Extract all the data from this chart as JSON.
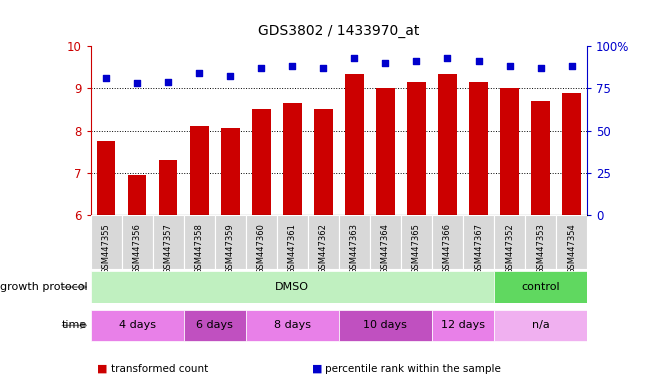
{
  "title": "GDS3802 / 1433970_at",
  "samples": [
    "GSM447355",
    "GSM447356",
    "GSM447357",
    "GSM447358",
    "GSM447359",
    "GSM447360",
    "GSM447361",
    "GSM447362",
    "GSM447363",
    "GSM447364",
    "GSM447365",
    "GSM447366",
    "GSM447367",
    "GSM447352",
    "GSM447353",
    "GSM447354"
  ],
  "transformed_count": [
    7.75,
    6.95,
    7.3,
    8.1,
    8.05,
    8.5,
    8.65,
    8.5,
    9.35,
    9.0,
    9.15,
    9.35,
    9.15,
    9.0,
    8.7,
    8.9
  ],
  "percentile_rank": [
    81,
    78,
    79,
    84,
    82,
    87,
    88,
    87,
    93,
    90,
    91,
    93,
    91,
    88,
    87,
    88
  ],
  "ylim_left": [
    6,
    10
  ],
  "ylim_right": [
    0,
    100
  ],
  "yticks_left": [
    6,
    7,
    8,
    9,
    10
  ],
  "yticks_right": [
    0,
    25,
    50,
    75,
    100
  ],
  "bar_color": "#cc0000",
  "dot_color": "#0000cc",
  "sample_bg": "#d8d8d8",
  "growth_protocol_groups": [
    {
      "label": "DMSO",
      "start": 0,
      "end": 13,
      "color": "#c0f0c0"
    },
    {
      "label": "control",
      "start": 13,
      "end": 16,
      "color": "#60d860"
    }
  ],
  "time_groups": [
    {
      "label": "4 days",
      "start": 0,
      "end": 3,
      "color": "#e880e8"
    },
    {
      "label": "6 days",
      "start": 3,
      "end": 5,
      "color": "#c050c0"
    },
    {
      "label": "8 days",
      "start": 5,
      "end": 8,
      "color": "#e880e8"
    },
    {
      "label": "10 days",
      "start": 8,
      "end": 11,
      "color": "#c050c0"
    },
    {
      "label": "12 days",
      "start": 11,
      "end": 13,
      "color": "#e880e8"
    },
    {
      "label": "n/a",
      "start": 13,
      "end": 16,
      "color": "#f0b0f0"
    }
  ],
  "legend_items": [
    {
      "label": "transformed count",
      "color": "#cc0000"
    },
    {
      "label": "percentile rank within the sample",
      "color": "#0000cc"
    }
  ],
  "bg_color": "#ffffff"
}
